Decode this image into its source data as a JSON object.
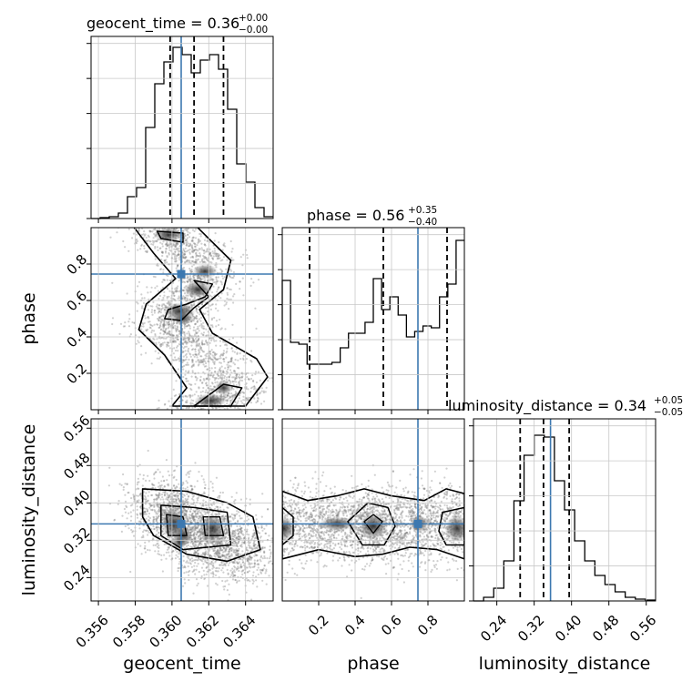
{
  "chart_data": {
    "type": "corner",
    "parameters": [
      "geocent_time",
      "phase",
      "luminosity_distance"
    ],
    "truths": {
      "geocent_time": 0.3605,
      "phase": 0.745,
      "luminosity_distance": 0.355
    },
    "truth_color": "#3c78b0",
    "titles": [
      {
        "param": "geocent_time",
        "main": "geocent_time = 0.36",
        "plus": "+0.00",
        "minus": "−0.00"
      },
      {
        "param": "phase",
        "main": "phase = 0.56",
        "plus": "+0.35",
        "minus": "−0.40"
      },
      {
        "param": "luminosity_distance",
        "main": "luminosity_distance = 0.34",
        "plus": "+0.05",
        "minus": "−0.05"
      }
    ],
    "quantiles": {
      "geocent_time": [
        0.3599,
        0.3612,
        0.3628
      ],
      "phase": [
        0.15,
        0.555,
        0.905
      ],
      "luminosity_distance": [
        0.29,
        0.34,
        0.395
      ]
    },
    "axes": {
      "geocent_time": {
        "range": [
          0.3556,
          0.3655
        ],
        "ticks": [
          0.356,
          0.358,
          0.36,
          0.362,
          0.364
        ],
        "tick_labels": [
          "0.356",
          "0.358",
          "0.360",
          "0.362",
          "0.364"
        ]
      },
      "phase": {
        "range": [
          0.0,
          1.0
        ],
        "ticks": [
          0.2,
          0.4,
          0.6,
          0.8
        ],
        "tick_labels": [
          "0.2",
          "0.4",
          "0.6",
          "0.8"
        ]
      },
      "luminosity_distance": {
        "range": [
          0.19,
          0.58
        ],
        "ticks": [
          0.24,
          0.32,
          0.4,
          0.48,
          0.56
        ],
        "tick_labels": [
          "0.24",
          "0.32",
          "0.40",
          "0.48",
          "0.56"
        ]
      }
    },
    "axis_labels": {
      "geocent_time": "geocent_time",
      "phase": "phase",
      "luminosity_distance": "luminosity_distance"
    },
    "hist_1d": {
      "geocent_time": [
        0.0,
        0.005,
        0.01,
        0.03,
        0.12,
        0.17,
        0.5,
        0.74,
        0.86,
        0.94,
        0.9,
        0.8,
        0.87,
        0.9,
        0.82,
        0.6,
        0.3,
        0.2,
        0.06,
        0.01
      ],
      "phase": [
        0.71,
        0.37,
        0.36,
        0.25,
        0.25,
        0.25,
        0.26,
        0.34,
        0.42,
        0.42,
        0.48,
        0.72,
        0.55,
        0.62,
        0.52,
        0.4,
        0.43,
        0.46,
        0.45,
        0.62,
        0.69,
        0.93
      ],
      "luminosity_distance": [
        0.0,
        0.02,
        0.07,
        0.22,
        0.55,
        0.8,
        0.91,
        0.9,
        0.66,
        0.5,
        0.33,
        0.22,
        0.14,
        0.09,
        0.05,
        0.02,
        0.01,
        0.005
      ]
    },
    "grid": true
  }
}
